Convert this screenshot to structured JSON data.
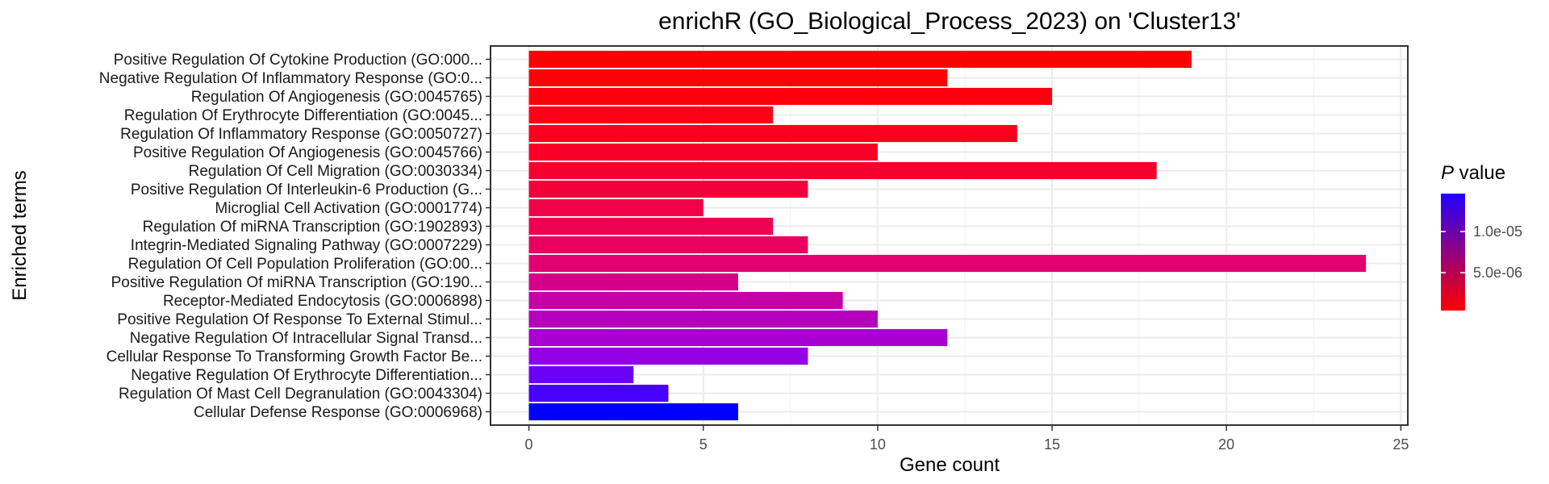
{
  "chart_data": {
    "type": "bar",
    "orientation": "horizontal",
    "title": "enrichR (GO_Biological_Process_2023) on 'Cluster13'",
    "xlabel": "Gene count",
    "ylabel": "Enriched terms",
    "xlim": [
      -1.1,
      25.2
    ],
    "xticks": [
      0,
      5,
      10,
      15,
      20,
      25
    ],
    "grid": true,
    "legend_position": "right",
    "categories": [
      "Positive Regulation Of Cytokine Production (GO:000...",
      "Negative Regulation Of Inflammatory Response (GO:0...",
      "Regulation Of Angiogenesis (GO:0045765)",
      "Regulation Of Erythrocyte Differentiation (GO:0045...",
      "Regulation Of Inflammatory Response (GO:0050727)",
      "Positive Regulation Of Angiogenesis (GO:0045766)",
      "Regulation Of Cell Migration (GO:0030334)",
      "Positive Regulation Of Interleukin-6 Production (G...",
      "Microglial Cell Activation (GO:0001774)",
      "Regulation Of miRNA Transcription (GO:1902893)",
      "Integrin-Mediated Signaling Pathway (GO:0007229)",
      "Regulation Of Cell Population Proliferation (GO:00...",
      "Positive Regulation Of miRNA Transcription (GO:190...",
      "Receptor-Mediated Endocytosis (GO:0006898)",
      "Positive Regulation Of Response To External Stimul...",
      "Negative Regulation Of Intracellular Signal Transd...",
      "Cellular Response To Transforming Growth Factor Be...",
      "Negative Regulation Of Erythrocyte Differentiation...",
      "Regulation Of Mast Cell Degranulation (GO:0043304)",
      "Cellular Defense Response (GO:0006968)"
    ],
    "values": [
      19,
      12,
      15,
      7,
      14,
      10,
      18,
      8,
      5,
      7,
      8,
      24,
      6,
      9,
      10,
      12,
      8,
      3,
      4,
      6
    ],
    "bar_colors": [
      "#ff0000",
      "#fe0008",
      "#fd000e",
      "#fb0016",
      "#fa001d",
      "#f80026",
      "#f6002e",
      "#f30039",
      "#f00044",
      "#ec0052",
      "#e8005f",
      "#e20070",
      "#d40089",
      "#c400a4",
      "#b500bd",
      "#a800d0",
      "#9300e3",
      "#6a00f5",
      "#4800fd",
      "#0000ff"
    ],
    "legend": {
      "title_italic": "P",
      "title_rest": " value",
      "gradient_top": "#2200ff",
      "gradient_bottom": "#ff0000",
      "ticks": [
        "1.0e-05",
        "5.0e-06"
      ]
    }
  }
}
